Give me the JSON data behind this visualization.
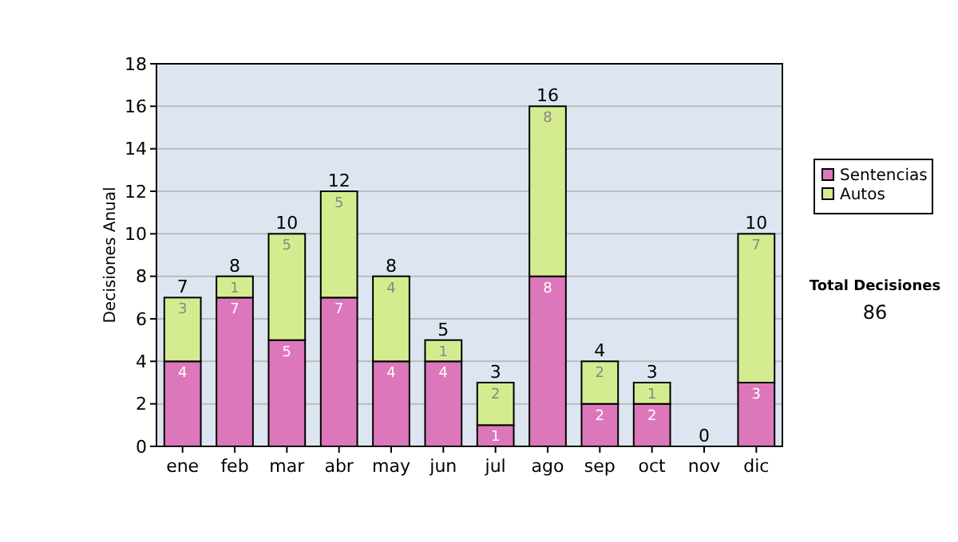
{
  "chart_data": {
    "type": "bar",
    "stacked": true,
    "ylabel": "Decisiones Anual",
    "categories": [
      "ene",
      "feb",
      "mar",
      "abr",
      "may",
      "jun",
      "jul",
      "ago",
      "sep",
      "oct",
      "nov",
      "dic"
    ],
    "series": [
      {
        "name": "Sentencias",
        "color": "#dd77bb",
        "values": [
          4,
          7,
          5,
          7,
          4,
          4,
          1,
          8,
          2,
          2,
          0,
          3
        ],
        "value_labels": [
          "4",
          "7",
          "5",
          "7",
          "4",
          "4",
          "1",
          "8",
          "2",
          "2",
          null,
          "3"
        ]
      },
      {
        "name": "Autos",
        "color": "#d4ec8f",
        "values": [
          3,
          1,
          5,
          5,
          4,
          1,
          2,
          8,
          2,
          1,
          0,
          7
        ],
        "value_labels": [
          "3",
          "1",
          "5",
          "5",
          "4",
          "1",
          "2",
          "8",
          "2",
          "1",
          null,
          "7"
        ]
      }
    ],
    "totals": [
      "7",
      "8",
      "10",
      "12",
      "8",
      "5",
      "3",
      "16",
      "4",
      "3",
      "0",
      "10"
    ],
    "ylim": [
      0,
      18
    ],
    "yticks": [
      0,
      2,
      4,
      6,
      8,
      10,
      12,
      14,
      16,
      18
    ],
    "grid": "y",
    "legend": "right",
    "annotations": [
      "Total Decisiones",
      "86"
    ]
  }
}
